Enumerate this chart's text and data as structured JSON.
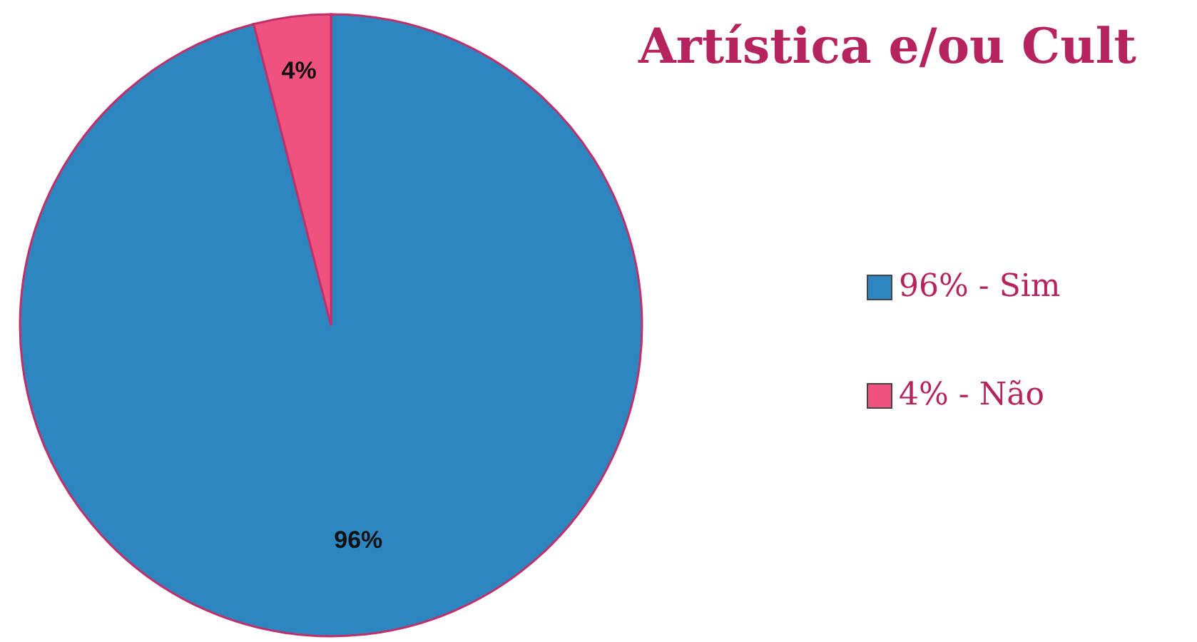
{
  "chart_data": {
    "type": "pie",
    "title": "Artística e/ou Cult",
    "categories": [
      "96% - Sim",
      "4% - Não"
    ],
    "values": [
      96,
      4
    ],
    "colors": [
      "#2e86c1",
      "#f0527f"
    ],
    "value_labels": [
      "96%",
      "4%"
    ],
    "legend": "right"
  }
}
